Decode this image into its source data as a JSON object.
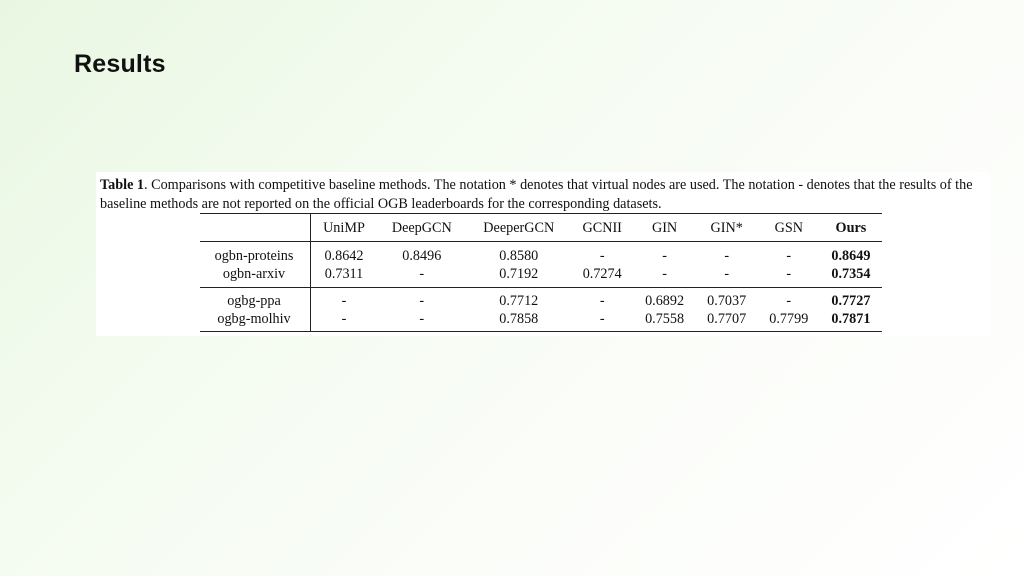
{
  "slide": {
    "title": "Results"
  },
  "caption": {
    "lead": "Table 1",
    "text": ". Comparisons with competitive baseline methods. The notation * denotes that virtual nodes are used. The notation - denotes that the results of the baseline methods are not reported on the official OGB leaderboards for the corresponding datasets."
  },
  "table": {
    "columns": [
      "UniMP",
      "DeepGCN",
      "DeeperGCN",
      "GCNII",
      "GIN",
      "GIN*",
      "GSN",
      "Ours"
    ],
    "rows": [
      {
        "dataset": "ogbn-proteins",
        "values": [
          "0.8642",
          "0.8496",
          "0.8580",
          "-",
          "-",
          "-",
          "-",
          "0.8649"
        ]
      },
      {
        "dataset": "ogbn-arxiv",
        "values": [
          "0.7311",
          "-",
          "0.7192",
          "0.7274",
          "-",
          "-",
          "-",
          "0.7354"
        ]
      },
      {
        "dataset": "ogbg-ppa",
        "values": [
          "-",
          "-",
          "0.7712",
          "-",
          "0.6892",
          "0.7037",
          "-",
          "0.7727"
        ]
      },
      {
        "dataset": "ogbg-molhiv",
        "values": [
          "-",
          "-",
          "0.7858",
          "-",
          "0.7558",
          "0.7707",
          "0.7799",
          "0.7871"
        ]
      }
    ]
  }
}
